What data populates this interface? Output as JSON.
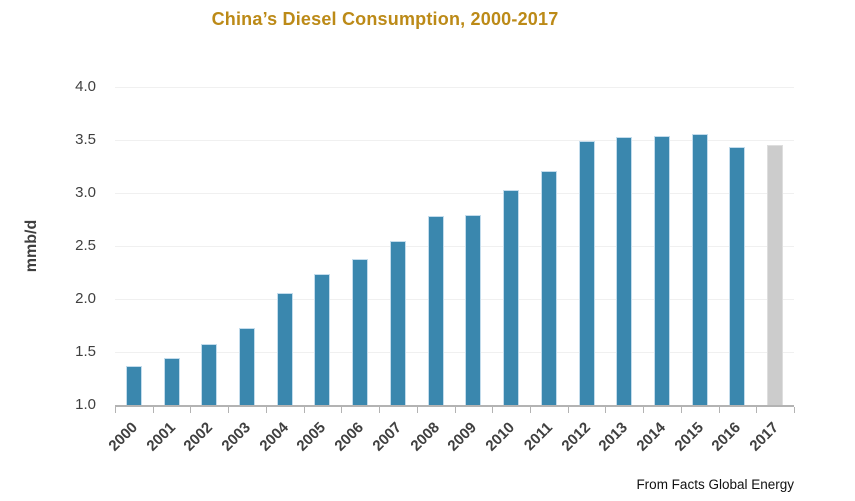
{
  "title": {
    "text": "China’s Diesel Consumption, 2000-2017",
    "color": "#bc8a17"
  },
  "y_axis": {
    "label": "mmb/d",
    "tick_labels": [
      "4.0",
      "3.5",
      "3.0",
      "2.5",
      "2.0",
      "1.5",
      "1.0"
    ]
  },
  "source": "From Facts Global Energy",
  "colors": {
    "bar": "#3a87ae",
    "bar_edge": "#c3dcec",
    "forecast_bar": "#cccccc",
    "forecast_bar_edge": "#dedede",
    "axis_line": "#b3b3b3",
    "gridline": "#f0f0f0",
    "axis_text": "#3f3f3f"
  },
  "chart_data": {
    "type": "bar",
    "title": "China’s Diesel Consumption, 2000-2017",
    "xlabel": "",
    "ylabel": "mmb/d",
    "categories": [
      "2000",
      "2001",
      "2002",
      "2003",
      "2004",
      "2005",
      "2006",
      "2007",
      "2008",
      "2009",
      "2010",
      "2011",
      "2012",
      "2013",
      "2014",
      "2015",
      "2016",
      "2017"
    ],
    "values": [
      1.37,
      1.44,
      1.58,
      1.73,
      2.06,
      2.24,
      2.38,
      2.55,
      2.78,
      2.79,
      3.03,
      3.21,
      3.49,
      3.53,
      3.54,
      3.56,
      3.43,
      3.45
    ],
    "highlighted_forecast_category": "2017",
    "ylim": [
      1.0,
      4.0
    ],
    "ytick_step": 0.5,
    "grid": "horizontal",
    "legend": "none",
    "annotation": "From Facts Global Energy"
  }
}
